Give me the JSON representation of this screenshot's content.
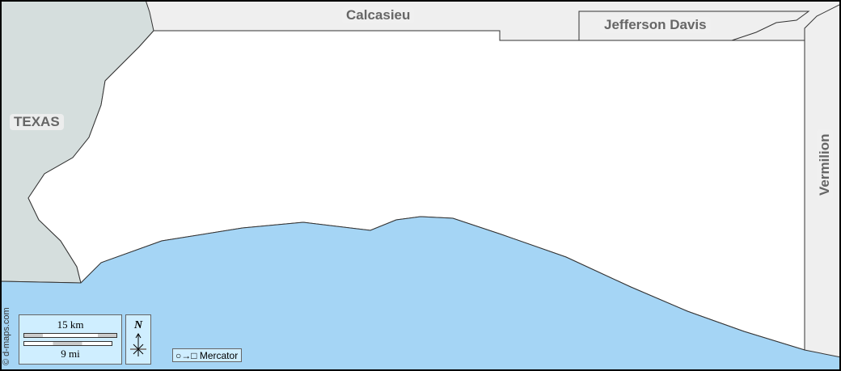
{
  "labels": {
    "texas": "TEXAS",
    "calcasieu": "Calcasieu",
    "jefferson_davis": "Jefferson Davis",
    "vermilion": "Vermilion"
  },
  "scale": {
    "km": "15 km",
    "mi": "9 mi"
  },
  "north": "N",
  "projection": "Mercator",
  "credit": "© d-maps.com",
  "colors": {
    "water": "#a5d5f5",
    "land": "#ffffff",
    "neighbor": "#efefef",
    "texas": "#d5dedd"
  }
}
